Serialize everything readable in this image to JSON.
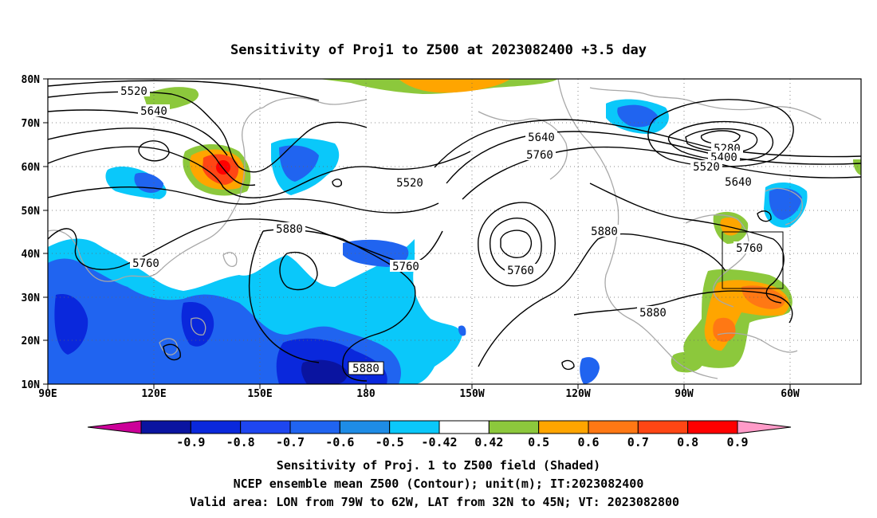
{
  "title": "Sensitivity of Proj1 to Z500 at 2023082400 +3.5 day",
  "axes": {
    "lon_ticks": [
      "90E",
      "120E",
      "150E",
      "180",
      "150W",
      "120W",
      "90W",
      "60W"
    ],
    "lat_ticks": [
      "80N",
      "70N",
      "60N",
      "50N",
      "40N",
      "30N",
      "20N",
      "10N"
    ]
  },
  "contour_labels": [
    "5520",
    "5640",
    "5760",
    "5880",
    "5520",
    "5640",
    "5760",
    "5760",
    "5880",
    "5280",
    "5400",
    "5520",
    "5640",
    "5760",
    "5880",
    "5880"
  ],
  "colorbar": {
    "labels": [
      "-0.9",
      "-0.8",
      "-0.7",
      "-0.6",
      "-0.5",
      "-0.42",
      "0.42",
      "0.5",
      "0.6",
      "0.7",
      "0.8",
      "0.9"
    ],
    "colors": [
      "#cc0099",
      "#0a14a0",
      "#0a28dc",
      "#1e46f0",
      "#2064f0",
      "#1e8ce6",
      "#0ac8fa",
      "#ffffff",
      "#8cc83c",
      "#ffa500",
      "#ff7814",
      "#ff4614",
      "#ff0000",
      "#ff9bc8"
    ]
  },
  "shading_colors": {
    "neg_weak": "#0ac8fa",
    "neg_mid": "#2064f0",
    "neg_strong": "#0a28dc",
    "pos_weak": "#8cc83c",
    "pos_mid": "#ffa500",
    "pos_strong": "#ff4614",
    "pos_max": "#ff0000",
    "coastline": "#a8a8a8"
  },
  "captions": [
    "Sensitivity of Proj. 1 to Z500 field (Shaded)",
    "NCEP ensemble mean Z500 (Contour); unit(m); IT:2023082400",
    "Valid area: LON from 79W to 62W, LAT from 32N to 45N; VT: 2023082800"
  ]
}
